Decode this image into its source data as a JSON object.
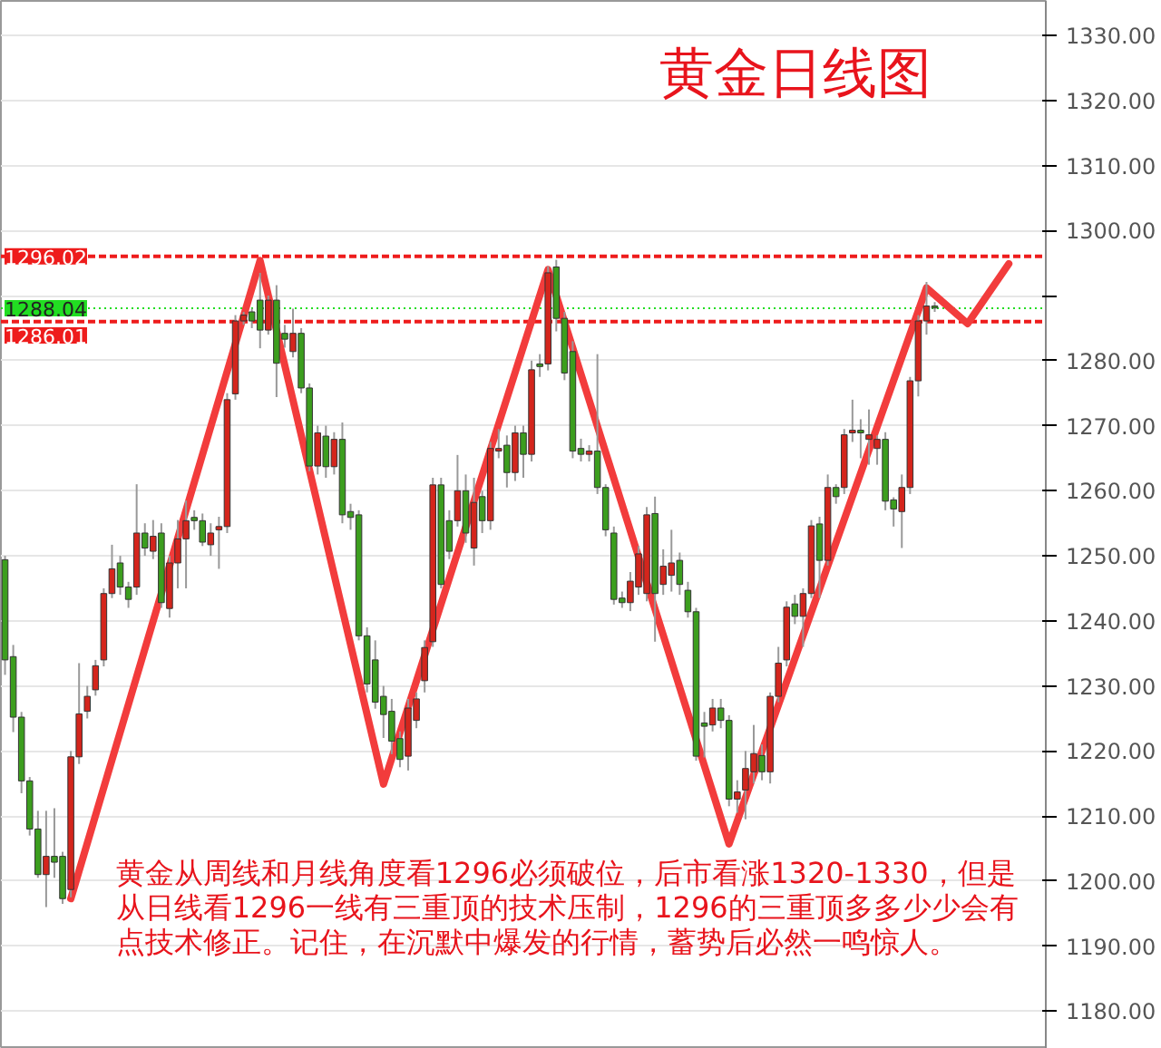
{
  "chart_data": {
    "type": "candlestick",
    "title": "黄金日线图",
    "categories": [
      null,
      null,
      null,
      null,
      null,
      null,
      null,
      null,
      null,
      null,
      null,
      null,
      null,
      null,
      null,
      null,
      null,
      null,
      null,
      null,
      null,
      null,
      null,
      null,
      null,
      null,
      null,
      null,
      null,
      null,
      null,
      null,
      null,
      null,
      null,
      null,
      null,
      null,
      null,
      null,
      null,
      null,
      null,
      null,
      null,
      null,
      null,
      null,
      null,
      null,
      null,
      null,
      null,
      null,
      null,
      null,
      null,
      null,
      null,
      null,
      null,
      null,
      null,
      null,
      null,
      null,
      null,
      null,
      null,
      null,
      null,
      null,
      null,
      null,
      null,
      null,
      null,
      null,
      null,
      null,
      null,
      null,
      null,
      null,
      null,
      null,
      null,
      null,
      null,
      null,
      null,
      null,
      null,
      null,
      null,
      null,
      null,
      null,
      null,
      null,
      null,
      null,
      null,
      null,
      null,
      null,
      null,
      null,
      null,
      null,
      null,
      null,
      null,
      null,
      null,
      null,
      null,
      null,
      null,
      null,
      null,
      null,
      null,
      null,
      null,
      null,
      null
    ],
    "ohlc": [
      [
        1249.4,
        1250,
        1231.7,
        1234.0
      ],
      [
        1234.5,
        1236.3,
        1222.9,
        1225.2
      ],
      [
        1225.2,
        1226,
        1213.5,
        1215.4
      ],
      [
        1215.4,
        1216,
        1207,
        1208.0
      ],
      [
        1208.0,
        1210.8,
        1200.5,
        1201.0
      ],
      [
        1201.0,
        1210.8,
        1196.0,
        1203.8
      ],
      [
        1203.8,
        1211.2,
        1200.5,
        1202.9
      ],
      [
        1203.8,
        1204.5,
        1196.5,
        1197.3
      ],
      [
        1198.7,
        1220,
        1197.5,
        1219.1
      ],
      [
        1219.1,
        1233.5,
        1218,
        1225.7
      ],
      [
        1226.1,
        1230,
        1225,
        1228.4
      ],
      [
        1229.4,
        1234,
        1228.5,
        1233.1
      ],
      [
        1234.0,
        1245,
        1233,
        1244.2
      ],
      [
        1244.2,
        1251.7,
        1243.5,
        1248.0
      ],
      [
        1248.9,
        1250,
        1244,
        1245.2
      ],
      [
        1245.2,
        1246,
        1242,
        1243.3
      ],
      [
        1245.2,
        1261.0,
        1244,
        1253.5
      ],
      [
        1253.5,
        1255,
        1250,
        1251.2
      ],
      [
        1250.7,
        1255.5,
        1249.5,
        1253.0
      ],
      [
        1253.5,
        1255,
        1242,
        1242.8
      ],
      [
        1241.9,
        1250,
        1240.5,
        1248.9
      ],
      [
        1248.9,
        1255.5,
        1245,
        1252.6
      ],
      [
        1252.6,
        1258.5,
        1245,
        1255.4
      ],
      [
        1255.9,
        1257,
        1254,
        1255.4
      ],
      [
        1255.4,
        1256.5,
        1251.5,
        1252.1
      ],
      [
        1251.7,
        1255,
        1250,
        1253.5
      ],
      [
        1254.0,
        1256,
        1248,
        1254.5
      ],
      [
        1254.5,
        1275,
        1253.5,
        1274.0
      ],
      [
        1274.9,
        1287,
        1274,
        1286.1
      ],
      [
        1286.1,
        1287.5,
        1285.5,
        1287.0
      ],
      [
        1287.5,
        1288,
        1285,
        1286.1
      ],
      [
        1289.3,
        1293.5,
        1281.9,
        1284.7
      ],
      [
        1284.7,
        1290,
        1284,
        1289.3
      ],
      [
        1289.3,
        1291.6,
        1274.4,
        1279.6
      ],
      [
        1284.2,
        1285.5,
        1282,
        1283.3
      ],
      [
        1281.4,
        1288,
        1280.5,
        1284.2
      ],
      [
        1284.2,
        1285,
        1275,
        1275.8
      ],
      [
        1275.8,
        1276.5,
        1263,
        1263.8
      ],
      [
        1263.8,
        1270,
        1262.5,
        1268.9
      ],
      [
        1268.4,
        1270,
        1262,
        1263.7
      ],
      [
        1263.7,
        1269,
        1262.5,
        1267.9
      ],
      [
        1267.9,
        1270.5,
        1255,
        1256.3
      ],
      [
        1256.8,
        1258,
        1254,
        1255.9
      ],
      [
        1256.3,
        1257,
        1237,
        1237.7
      ],
      [
        1237.7,
        1239,
        1229,
        1230.3
      ],
      [
        1234.0,
        1237,
        1226.5,
        1227.5
      ],
      [
        1228.4,
        1230,
        1222,
        1225.6
      ],
      [
        1226.1,
        1228,
        1219.5,
        1221.5
      ],
      [
        1221.9,
        1223,
        1217.5,
        1218.7
      ],
      [
        1219.2,
        1228,
        1217,
        1226.6
      ],
      [
        1224.7,
        1229,
        1223.5,
        1228.0
      ],
      [
        1230.8,
        1237,
        1229,
        1235.9
      ],
      [
        1236.8,
        1262,
        1236,
        1260.9
      ],
      [
        1260.9,
        1262,
        1245,
        1245.6
      ],
      [
        1255.4,
        1257,
        1249.5,
        1250.7
      ],
      [
        1255.4,
        1265.5,
        1254.5,
        1260.0
      ],
      [
        1260.0,
        1262.5,
        1252,
        1253.5
      ],
      [
        1251.2,
        1262,
        1248.5,
        1258.2
      ],
      [
        1259.1,
        1260,
        1253.5,
        1255.4
      ],
      [
        1255.4,
        1267.5,
        1254,
        1266.5
      ],
      [
        1266.1,
        1269.5,
        1265,
        1266.5
      ],
      [
        1267.0,
        1268.5,
        1260.5,
        1262.8
      ],
      [
        1262.8,
        1270,
        1261.5,
        1268.9
      ],
      [
        1268.9,
        1270,
        1262,
        1265.6
      ],
      [
        1265.6,
        1280,
        1264.5,
        1278.6
      ],
      [
        1279.5,
        1281,
        1277.5,
        1279.1
      ],
      [
        1279.5,
        1294.5,
        1278.5,
        1293.5
      ],
      [
        1294.4,
        1295.5,
        1284.5,
        1286.5
      ],
      [
        1286.5,
        1287.5,
        1277,
        1278.1
      ],
      [
        1281.4,
        1283,
        1265,
        1266.1
      ],
      [
        1266.5,
        1268,
        1264.5,
        1265.6
      ],
      [
        1265.6,
        1267,
        1264.5,
        1266.1
      ],
      [
        1266.1,
        1281,
        1259.5,
        1260.5
      ],
      [
        1260.5,
        1261,
        1253,
        1254.0
      ],
      [
        1253.5,
        1254.5,
        1242.5,
        1243.3
      ],
      [
        1243.5,
        1244.5,
        1242,
        1242.8
      ],
      [
        1242.8,
        1247.5,
        1241.5,
        1246.1
      ],
      [
        1245.2,
        1251.5,
        1244,
        1250.3
      ],
      [
        1244.2,
        1257.5,
        1243,
        1256.3
      ],
      [
        1256.5,
        1259.1,
        1236.8,
        1244.2
      ],
      [
        1245.6,
        1251,
        1244,
        1248.4
      ],
      [
        1247.0,
        1254,
        1244.5,
        1248.9
      ],
      [
        1249.3,
        1250.5,
        1244,
        1245.6
      ],
      [
        1244.7,
        1246,
        1240.5,
        1241.4
      ],
      [
        1241.4,
        1242,
        1218.5,
        1219.2
      ],
      [
        1224.3,
        1226,
        1219,
        1223.8
      ],
      [
        1224.0,
        1228,
        1223,
        1226.6
      ],
      [
        1226.6,
        1228,
        1223.5,
        1224.7
      ],
      [
        1224.7,
        1225.5,
        1211.5,
        1212.6
      ],
      [
        1212.6,
        1215.5,
        1210.5,
        1213.7
      ],
      [
        1214.0,
        1220,
        1209.5,
        1217.3
      ],
      [
        1216.8,
        1224,
        1215,
        1219.6
      ],
      [
        1219.3,
        1221,
        1215.5,
        1216.8
      ],
      [
        1216.8,
        1229,
        1215,
        1228.4
      ],
      [
        1228.4,
        1236,
        1227.5,
        1233.5
      ],
      [
        1234.0,
        1243,
        1233,
        1242.1
      ],
      [
        1242.6,
        1244,
        1239.5,
        1240.7
      ],
      [
        1240.7,
        1245,
        1236,
        1244.2
      ],
      [
        1244.2,
        1255.5,
        1243.5,
        1254.6
      ],
      [
        1254.9,
        1256,
        1243.5,
        1249.3
      ],
      [
        1249.3,
        1262.5,
        1248.5,
        1260.5
      ],
      [
        1260.5,
        1261,
        1258,
        1259.1
      ],
      [
        1260.5,
        1269.5,
        1259.5,
        1268.6
      ],
      [
        1268.9,
        1274,
        1267.5,
        1269.3
      ],
      [
        1269.3,
        1271,
        1265,
        1268.9
      ],
      [
        1267.9,
        1272.5,
        1264,
        1268.6
      ],
      [
        1266.5,
        1268.5,
        1264,
        1267.9
      ],
      [
        1267.9,
        1269,
        1257,
        1258.4
      ],
      [
        1258.6,
        1259,
        1254.5,
        1257.2
      ],
      [
        1256.8,
        1262.5,
        1251.2,
        1260.5
      ],
      [
        1260.5,
        1277.5,
        1259.5,
        1276.9
      ],
      [
        1276.9,
        1287,
        1274.5,
        1286.1
      ],
      [
        1286.1,
        1292.1,
        1284,
        1288.4
      ],
      [
        1288.4,
        1289,
        1287.5,
        1288.1
      ],
      null,
      null,
      null,
      null,
      null,
      null,
      null,
      null,
      null,
      null,
      null,
      null,
      null
    ],
    "colors": [
      "#3c9e1e",
      "#3c9e1e",
      "#3c9e1e",
      "#3c9e1e",
      "#3c9e1e",
      "#d4251c",
      "#3c9e1e",
      "#3c9e1e",
      "#d4251c",
      "#d4251c",
      "#d4251c",
      "#d4251c",
      "#d4251c",
      "#d4251c",
      "#3c9e1e",
      "#3c9e1e",
      "#d4251c",
      "#3c9e1e",
      "#d4251c",
      "#3c9e1e",
      "#d4251c",
      "#d4251c",
      "#d4251c",
      "#3c9e1e",
      "#3c9e1e",
      "#d4251c",
      "#d4251c",
      "#d4251c",
      "#d4251c",
      "#d4251c",
      "#3c9e1e",
      "#3c9e1e",
      "#d4251c",
      "#3c9e1e",
      "#3c9e1e",
      "#d4251c",
      "#3c9e1e",
      "#3c9e1e",
      "#d4251c",
      "#3c9e1e",
      "#d4251c",
      "#3c9e1e",
      "#3c9e1e",
      "#3c9e1e",
      "#3c9e1e",
      "#3c9e1e",
      "#3c9e1e",
      "#3c9e1e",
      "#3c9e1e",
      "#d4251c",
      "#d4251c",
      "#d4251c",
      "#d4251c",
      "#3c9e1e",
      "#3c9e1e",
      "#d4251c",
      "#3c9e1e",
      "#d4251c",
      "#3c9e1e",
      "#d4251c",
      "#d4251c",
      "#3c9e1e",
      "#d4251c",
      "#3c9e1e",
      "#d4251c",
      "#3c9e1e",
      "#d4251c",
      "#3c9e1e",
      "#3c9e1e",
      "#3c9e1e",
      "#3c9e1e",
      "#d4251c",
      "#3c9e1e",
      "#3c9e1e",
      "#3c9e1e",
      "#3c9e1e",
      "#d4251c",
      "#d4251c",
      "#d4251c",
      "#3c9e1e",
      "#d4251c",
      "#d4251c",
      "#3c9e1e",
      "#3c9e1e",
      "#3c9e1e",
      "#3c9e1e",
      "#d4251c",
      "#3c9e1e",
      "#3c9e1e",
      "#d4251c",
      "#d4251c",
      "#d4251c",
      "#3c9e1e",
      "#d4251c",
      "#d4251c",
      "#d4251c",
      "#3c9e1e",
      "#d4251c",
      "#d4251c",
      "#3c9e1e",
      "#d4251c",
      "#3c9e1e",
      "#d4251c",
      "#d4251c",
      "#3c9e1e",
      "#d4251c",
      "#d4251c",
      "#3c9e1e",
      "#3c9e1e",
      "#d4251c",
      "#d4251c",
      "#d4251c",
      "#d4251c",
      "#3c9e1e",
      null,
      null,
      null,
      null,
      null,
      null,
      null,
      null,
      null,
      null,
      null,
      null,
      null
    ],
    "series": [
      {
        "type": "line",
        "color": "#f23c3c",
        "values": [
          null,
          null,
          null,
          null,
          null,
          null,
          null,
          null,
          1197.3,
          null,
          null,
          null,
          null,
          null,
          null,
          null,
          null,
          null,
          null,
          null,
          null,
          null,
          null,
          null,
          null,
          null,
          null,
          null,
          null,
          null,
          null,
          1295.4,
          null,
          null,
          null,
          null,
          null,
          null,
          null,
          null,
          null,
          null,
          null,
          null,
          null,
          null,
          1214.9,
          null,
          null,
          null,
          null,
          null,
          null,
          null,
          null,
          null,
          null,
          null,
          null,
          null,
          null,
          null,
          null,
          null,
          null,
          null,
          1294.0,
          null,
          null,
          null,
          null,
          null,
          null,
          null,
          null,
          null,
          null,
          null,
          null,
          null,
          null,
          null,
          null,
          null,
          null,
          null,
          null,
          null,
          1205.7,
          null,
          null,
          null,
          null,
          null,
          null,
          null,
          null,
          null,
          null,
          null,
          null,
          null,
          null,
          null,
          null,
          null,
          null,
          null,
          null,
          null,
          null,
          null,
          1291.2,
          null,
          null,
          null,
          null,
          1285.7,
          null,
          null,
          null,
          null,
          1294.9,
          null,
          null,
          null,
          null
        ]
      }
    ],
    "ylim": [
      1174.2,
      1335.3
    ],
    "yticks": [
      {
        "value": 1180,
        "label": "1180.00"
      },
      {
        "value": 1190,
        "label": "1190.00"
      },
      {
        "value": 1200,
        "label": "1200.00"
      },
      {
        "value": 1210,
        "label": "1210.00"
      },
      {
        "value": 1220,
        "label": "1220.00"
      },
      {
        "value": 1230,
        "label": "1230.00"
      },
      {
        "value": 1240,
        "label": "1240.00"
      },
      {
        "value": 1250,
        "label": "1250.00"
      },
      {
        "value": 1260,
        "label": "1260.00"
      },
      {
        "value": 1270,
        "label": "1270.00"
      },
      {
        "value": 1280,
        "label": "1280.00"
      },
      {
        "value": 1290,
        "label": null
      },
      {
        "value": 1300,
        "label": "1300.00"
      },
      {
        "value": 1310,
        "label": "1310.00"
      },
      {
        "value": 1320,
        "label": "1320.00"
      },
      {
        "value": 1330,
        "label": "1330.00"
      }
    ],
    "ref_lines": [
      {
        "axis": "y",
        "value": 1296.02,
        "label": "1296.02",
        "color": "#ee1c1c",
        "line_style": "dashed"
      },
      {
        "axis": "y",
        "value": 1288.04,
        "label": "1288.04",
        "color": "#22dd22",
        "line_style": "dotted"
      },
      {
        "axis": "y",
        "value": 1286.01,
        "label": "1286.01",
        "color": "#ee1c1c",
        "line_style": "dashed"
      }
    ],
    "annotations": [
      "黄金从周线和月线角度看1296必须破位，后市看涨1320-1330，但是从日线看1296一线有三重顶的技术压制，1296的三重顶多多少少会有点技术修正。记住，在沉默中爆发的行情，蓄势后必然一鸣惊人。"
    ],
    "grid": "y",
    "tick_labels": "y"
  }
}
